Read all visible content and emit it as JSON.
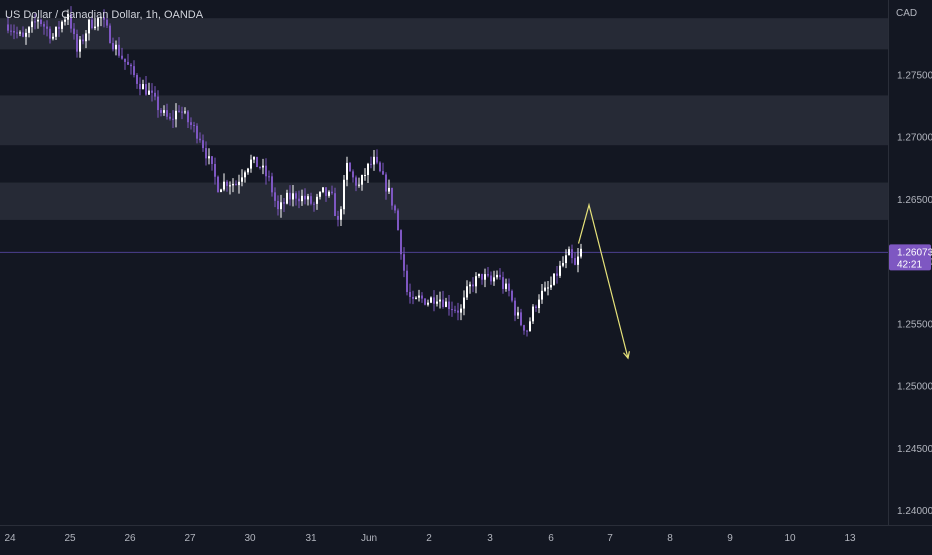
{
  "symbol_title": "US Dollar / Canadian Dollar, 1h, OANDA",
  "currency_label": "CAD",
  "price_label": {
    "price": "1.26073",
    "countdown": "42:21"
  },
  "colors": {
    "background": "#131722",
    "zone": "#2a2e39",
    "candle_up": "#ffffff",
    "candle_down": "#7e57c2",
    "last_price_line": "#4b3f8f",
    "price_label_bg": "#7e57c2",
    "projection": "#e6e27a",
    "axis_text": "#b2b5be"
  },
  "chart_data": {
    "type": "candlestick",
    "x_labels": [
      "24",
      "25",
      "26",
      "27",
      "30",
      "31",
      "Jun",
      "2",
      "3",
      "6",
      "7",
      "8",
      "9",
      "10",
      "13"
    ],
    "y_ticks": [
      "1.27500",
      "1.27000",
      "1.26500",
      "1.26000",
      "1.25500",
      "1.25000",
      "1.24500",
      "1.24000"
    ],
    "ylim": [
      1.2395,
      1.281
    ],
    "last_price": 1.26073,
    "zones": [
      {
        "from": 1.2795,
        "to": 1.277
      },
      {
        "from": 1.2733,
        "to": 1.2693
      },
      {
        "from": 1.2663,
        "to": 1.2633
      }
    ],
    "path": [
      [
        0,
        1.279
      ],
      [
        5,
        1.2778
      ],
      [
        10,
        1.2795
      ],
      [
        15,
        1.278
      ],
      [
        20,
        1.28
      ],
      [
        23,
        1.2768
      ],
      [
        27,
        1.279
      ],
      [
        31,
        1.2795
      ],
      [
        35,
        1.2775
      ],
      [
        39,
        1.276
      ],
      [
        43,
        1.2745
      ],
      [
        47,
        1.2735
      ],
      [
        51,
        1.272
      ],
      [
        54,
        1.2712
      ],
      [
        57,
        1.2723
      ],
      [
        60,
        1.2712
      ],
      [
        64,
        1.27
      ],
      [
        67,
        1.268
      ],
      [
        70,
        1.266
      ],
      [
        73,
        1.2664
      ],
      [
        76,
        1.2662
      ],
      [
        79,
        1.2675
      ],
      [
        81,
        1.268
      ],
      [
        84,
        1.2676
      ],
      [
        87,
        1.2665
      ],
      [
        90,
        1.264
      ],
      [
        93,
        1.265
      ],
      [
        96,
        1.2653
      ],
      [
        99,
        1.265
      ],
      [
        102,
        1.2645
      ],
      [
        105,
        1.2655
      ],
      [
        108,
        1.265
      ],
      [
        110,
        1.263
      ],
      [
        113,
        1.2676
      ],
      [
        115,
        1.2666
      ],
      [
        117,
        1.266
      ],
      [
        120,
        1.2675
      ],
      [
        122,
        1.268
      ],
      [
        125,
        1.2665
      ],
      [
        127,
        1.2655
      ],
      [
        129,
        1.264
      ],
      [
        131,
        1.261
      ],
      [
        133,
        1.2575
      ],
      [
        135,
        1.2565
      ],
      [
        137,
        1.257
      ],
      [
        140,
        1.2568
      ],
      [
        143,
        1.2572
      ],
      [
        146,
        1.2566
      ],
      [
        149,
        1.2562
      ],
      [
        151,
        1.256
      ],
      [
        153,
        1.2575
      ],
      [
        155,
        1.2583
      ],
      [
        158,
        1.2588
      ],
      [
        161,
        1.2583
      ],
      [
        163,
        1.259
      ],
      [
        165,
        1.258
      ],
      [
        167,
        1.2575
      ],
      [
        169,
        1.256
      ],
      [
        171,
        1.255
      ],
      [
        173,
        1.2545
      ],
      [
        175,
        1.256
      ],
      [
        177,
        1.2572
      ],
      [
        179,
        1.2575
      ],
      [
        181,
        1.258
      ],
      [
        183,
        1.259
      ],
      [
        185,
        1.2598
      ],
      [
        187,
        1.2605
      ],
      [
        189,
        1.2595
      ],
      [
        191,
        1.2608
      ]
    ],
    "projection": [
      [
        190.5,
        1.2614
      ],
      [
        194,
        1.2645
      ],
      [
        207,
        1.2522
      ]
    ],
    "x_start": "May 24",
    "x_end": "Jun 13"
  }
}
